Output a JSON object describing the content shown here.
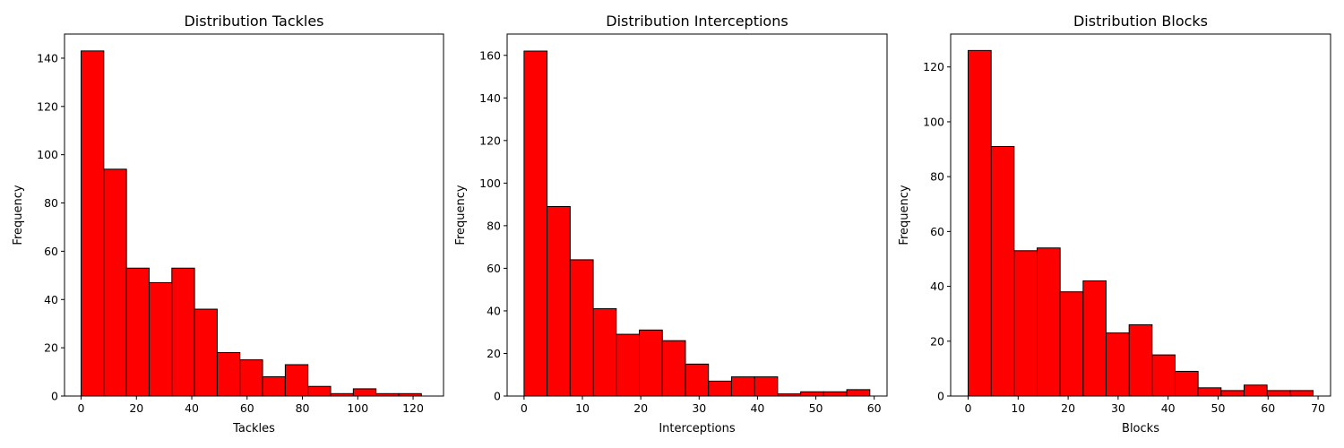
{
  "colors": {
    "bar_fill": "#ff0000",
    "bar_edge": "#000000",
    "background": "#ffffff"
  },
  "chart_data": [
    {
      "type": "bar",
      "histogram": true,
      "title": "Distribution Tackles",
      "xlabel": "Tackles",
      "ylabel": "Frequency",
      "bin_start": 0,
      "bin_width": 8.2,
      "values": [
        143,
        94,
        53,
        47,
        53,
        36,
        18,
        15,
        8,
        13,
        4,
        1,
        3,
        1,
        1
      ],
      "xlim": [
        -6,
        131
      ],
      "ylim": [
        0,
        150
      ],
      "xticks": [
        0,
        20,
        40,
        60,
        80,
        100,
        120
      ],
      "yticks": [
        0,
        20,
        40,
        60,
        80,
        100,
        120,
        140
      ],
      "grid": false
    },
    {
      "type": "bar",
      "histogram": true,
      "title": "Distribution Interceptions",
      "xlabel": "Interceptions",
      "ylabel": "Frequency",
      "bin_start": 0,
      "bin_width": 3.95,
      "values": [
        162,
        89,
        64,
        41,
        29,
        31,
        26,
        15,
        7,
        9,
        9,
        1,
        2,
        2,
        3
      ],
      "xlim": [
        -2.9,
        62.2
      ],
      "ylim": [
        0,
        170
      ],
      "xticks": [
        0,
        10,
        20,
        30,
        40,
        50,
        60
      ],
      "yticks": [
        0,
        20,
        40,
        60,
        80,
        100,
        120,
        140,
        160
      ],
      "grid": false
    },
    {
      "type": "bar",
      "histogram": true,
      "title": "Distribution Blocks",
      "xlabel": "Blocks",
      "ylabel": "Frequency",
      "bin_start": 0,
      "bin_width": 4.6,
      "values": [
        126,
        91,
        53,
        54,
        38,
        42,
        23,
        26,
        15,
        9,
        3,
        2,
        4,
        2,
        2
      ],
      "xlim": [
        -3.5,
        72.5
      ],
      "ylim": [
        0,
        132
      ],
      "xticks": [
        0,
        10,
        20,
        30,
        40,
        50,
        60,
        70
      ],
      "yticks": [
        0,
        20,
        40,
        60,
        80,
        100,
        120
      ],
      "grid": false
    }
  ]
}
